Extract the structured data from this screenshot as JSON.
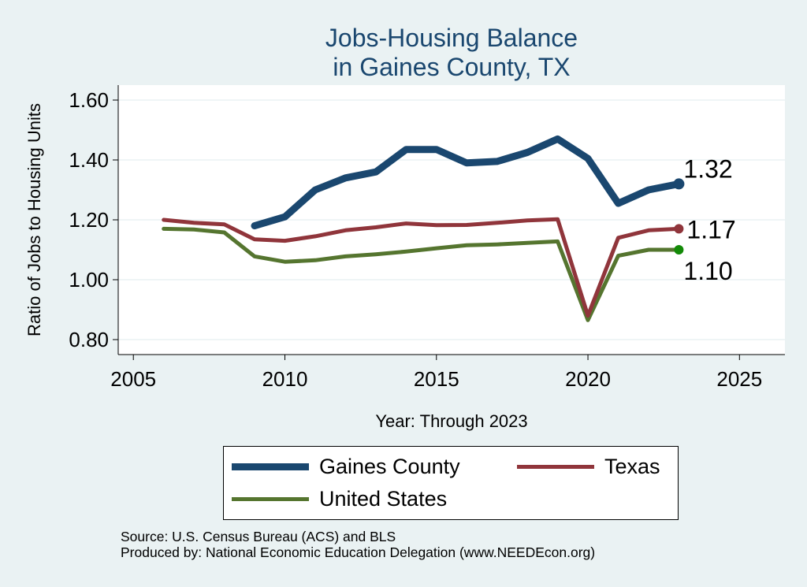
{
  "chart_data": {
    "type": "line",
    "title_lines": [
      "Jobs-Housing Balance",
      "in Gaines County, TX"
    ],
    "xlabel": "Year: Through 2023",
    "ylabel": "Ratio of Jobs to Housing Units",
    "xlim": [
      2004.5,
      2026.5
    ],
    "ylim": [
      0.75,
      1.65
    ],
    "xticks": [
      2005,
      2010,
      2015,
      2020,
      2025
    ],
    "yticks": [
      0.8,
      1.0,
      1.2,
      1.4,
      1.6
    ],
    "ytick_labels": [
      "0.80",
      "1.00",
      "1.20",
      "1.40",
      "1.60"
    ],
    "grid": true,
    "series": [
      {
        "name": "Gaines County",
        "color": "#1a476f",
        "x": [
          2009,
          2010,
          2011,
          2012,
          2013,
          2014,
          2015,
          2016,
          2017,
          2018,
          2019,
          2020,
          2021,
          2022,
          2023
        ],
        "values": [
          1.18,
          1.21,
          1.3,
          1.34,
          1.36,
          1.435,
          1.435,
          1.39,
          1.395,
          1.425,
          1.47,
          1.405,
          1.255,
          1.3,
          1.32
        ],
        "end_label": "1.32"
      },
      {
        "name": "Texas",
        "color": "#90353b",
        "x": [
          2006,
          2007,
          2008,
          2009,
          2010,
          2011,
          2012,
          2013,
          2014,
          2015,
          2016,
          2017,
          2018,
          2019,
          2020,
          2021,
          2022,
          2023
        ],
        "values": [
          1.2,
          1.19,
          1.185,
          1.135,
          1.13,
          1.145,
          1.165,
          1.175,
          1.188,
          1.182,
          1.183,
          1.19,
          1.198,
          1.202,
          0.88,
          1.14,
          1.165,
          1.17
        ],
        "end_label": "1.17"
      },
      {
        "name": "United States",
        "color": "#55752f",
        "x": [
          2006,
          2007,
          2008,
          2009,
          2010,
          2011,
          2012,
          2013,
          2014,
          2015,
          2016,
          2017,
          2018,
          2019,
          2020,
          2021,
          2022,
          2023
        ],
        "values": [
          1.17,
          1.168,
          1.158,
          1.078,
          1.06,
          1.065,
          1.078,
          1.085,
          1.094,
          1.105,
          1.115,
          1.118,
          1.123,
          1.128,
          0.865,
          1.08,
          1.1,
          1.1
        ],
        "end_label": "1.10"
      }
    ],
    "end_dot_colors": [
      "#1a476f",
      "#90353b",
      "#138a07"
    ],
    "legend_position": "bottom"
  },
  "source_lines": [
    "Source: U.S. Census Bureau (ACS) and BLS",
    "Produced by: National Economic Education Delegation (www.NEEDEcon.org)"
  ]
}
